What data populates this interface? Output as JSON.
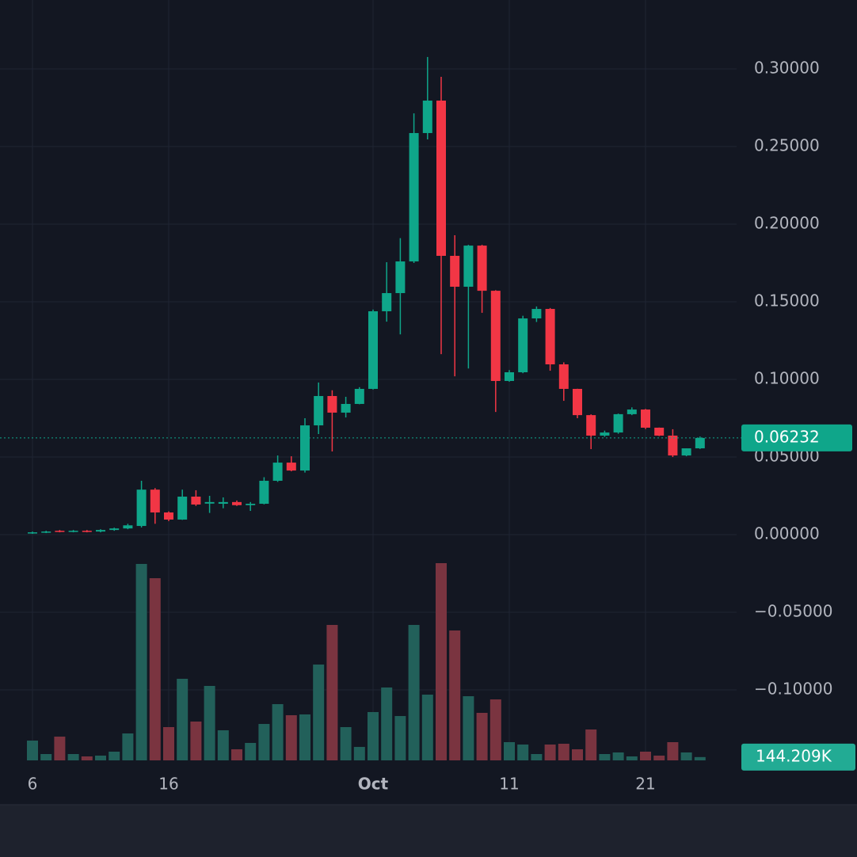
{
  "chart_data": {
    "type": "candlestick",
    "categories": [
      "6",
      null,
      null,
      null,
      null,
      null,
      null,
      null,
      null,
      null,
      "16",
      null,
      null,
      null,
      null,
      null,
      null,
      null,
      null,
      null,
      null,
      null,
      null,
      null,
      null,
      "Oct",
      null,
      null,
      null,
      null,
      null,
      null,
      null,
      null,
      null,
      "11",
      null,
      null,
      null,
      null,
      null,
      null,
      null,
      null,
      null,
      "21",
      null,
      null,
      null,
      null
    ],
    "open": [
      0.001,
      0.0015,
      0.0025,
      0.002,
      0.0025,
      0.002,
      0.003,
      0.004,
      0.0056,
      0.029,
      0.0143,
      0.0097,
      0.0245,
      0.02,
      0.0199,
      0.021,
      0.019,
      0.0199,
      0.0347,
      0.0464,
      0.0413,
      0.0704,
      0.0893,
      0.0786,
      0.0842,
      0.0939,
      0.1439,
      0.1556,
      0.176,
      0.2587,
      0.2796,
      0.1796,
      0.1597,
      0.1862,
      0.1571,
      0.099,
      0.1046,
      0.1393,
      0.1454,
      0.1097,
      0.0939,
      0.077,
      0.0638,
      0.0658,
      0.0776,
      0.0806,
      0.0689,
      0.0638,
      0.051,
      0.0556
    ],
    "high": [
      0.002,
      0.0025,
      0.003,
      0.003,
      0.003,
      0.0035,
      0.0045,
      0.007,
      0.0347,
      0.03,
      0.015,
      0.029,
      0.0286,
      0.025,
      0.024,
      0.022,
      0.021,
      0.037,
      0.051,
      0.0505,
      0.075,
      0.098,
      0.093,
      0.0888,
      0.095,
      0.145,
      0.1755,
      0.191,
      0.2714,
      0.3077,
      0.2949,
      0.1929,
      0.1867,
      0.1867,
      0.1575,
      0.106,
      0.141,
      0.147,
      0.146,
      0.111,
      0.094,
      0.0775,
      0.067,
      0.078,
      0.082,
      0.081,
      0.069,
      0.0679,
      0.0556,
      0.0632
    ],
    "low": [
      0.0005,
      0.001,
      0.0015,
      0.0015,
      0.0015,
      0.0015,
      0.0025,
      0.0035,
      0.0046,
      0.007,
      0.0087,
      0.0095,
      0.0185,
      0.014,
      0.017,
      0.0185,
      0.0153,
      0.0195,
      0.034,
      0.0408,
      0.04,
      0.0648,
      0.0536,
      0.0755,
      0.084,
      0.0935,
      0.1372,
      0.129,
      0.175,
      0.2546,
      0.1163,
      0.102,
      0.107,
      0.1429,
      0.079,
      0.0985,
      0.104,
      0.137,
      0.1056,
      0.0862,
      0.075,
      0.0551,
      0.063,
      0.065,
      0.077,
      0.068,
      0.0635,
      0.05,
      0.0505,
      0.0552
    ],
    "close": [
      0.0015,
      0.002,
      0.002,
      0.0025,
      0.002,
      0.003,
      0.004,
      0.006,
      0.029,
      0.0143,
      0.0097,
      0.0245,
      0.0194,
      0.021,
      0.021,
      0.019,
      0.0199,
      0.0347,
      0.0464,
      0.0413,
      0.0704,
      0.0893,
      0.0786,
      0.0842,
      0.0939,
      0.1439,
      0.1556,
      0.176,
      0.2587,
      0.2796,
      0.1796,
      0.1597,
      0.1862,
      0.1571,
      0.099,
      0.1046,
      0.1393,
      0.1454,
      0.1097,
      0.0939,
      0.077,
      0.0638,
      0.0658,
      0.0776,
      0.0806,
      0.0689,
      0.0638,
      0.051,
      0.0556,
      0.06232
    ],
    "volume": [
      865000,
      277000,
      1038000,
      277000,
      173000,
      208000,
      381000,
      1177000,
      8585000,
      7962000,
      1454000,
      3565000,
      1696000,
      3254000,
      1315000,
      485000,
      762000,
      1592000,
      2458000,
      1973000,
      2008000,
      4188000,
      5919000,
      1454000,
      588000,
      2112000,
      3185000,
      1938000,
      5919000,
      2873000,
      8619000,
      5677000,
      2804000,
      2077000,
      2665000,
      796000,
      692000,
      277000,
      692000,
      727000,
      485000,
      1350000,
      277000,
      346000,
      173000,
      381000,
      208000,
      796000,
      346000,
      144209
    ],
    "up_color": "#0fa68a",
    "down_color": "#f23645",
    "volume_up_color": "#22605a",
    "volume_down_color": "#7a3440",
    "ylim": [
      -0.1454,
      0.3444
    ],
    "yticks": [
      {
        "value": 0.3,
        "label": "0.30000"
      },
      {
        "value": 0.25,
        "label": "0.25000"
      },
      {
        "value": 0.2,
        "label": "0.20000"
      },
      {
        "value": 0.15,
        "label": "0.15000"
      },
      {
        "value": 0.1,
        "label": "0.10000"
      },
      {
        "value": 0.05,
        "label": "0.05000"
      },
      {
        "value": 0,
        "label": "0.00000"
      },
      {
        "value": -0.05,
        "label": "−0.05000"
      },
      {
        "value": -0.1,
        "label": "−0.10000"
      }
    ],
    "volume_lim": [
      0,
      9000000
    ],
    "price_line": {
      "value": 0.06232,
      "label": "0.06232"
    },
    "volume_label": {
      "value": 144209,
      "label": "144.209K"
    },
    "grid": true
  }
}
